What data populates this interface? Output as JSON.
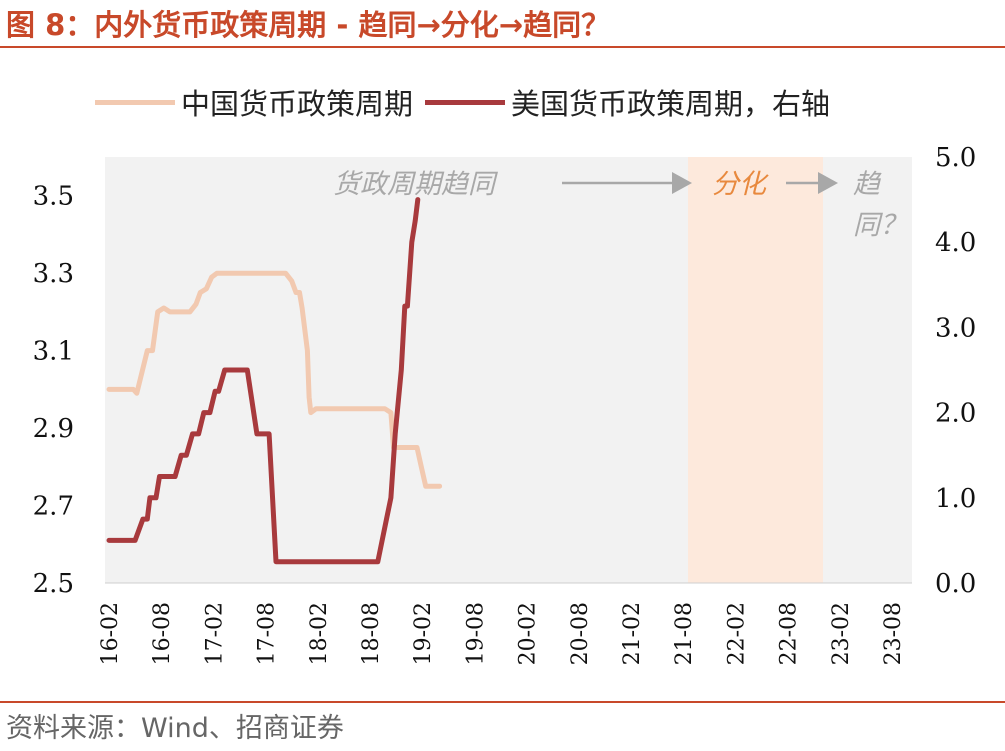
{
  "title": "图 8：内外货币政策周期 - 趋同→分化→趋同？",
  "source": "资料来源：Wind、招商证券",
  "colors": {
    "accent": "#c8492a",
    "china_series": "#f2c9b0",
    "us_series": "#a83a3d",
    "shade_gray": "#f2f2f2",
    "shade_orange": "#fde9dc",
    "annotation_gray": "#a8a8a8",
    "annotation_orange": "#e8893e"
  },
  "chart_data": {
    "type": "line",
    "legend_position": "top",
    "x_tick_labels": [
      "16-02",
      "16-08",
      "17-02",
      "17-08",
      "18-02",
      "18-08",
      "19-02",
      "19-08",
      "20-02",
      "20-08",
      "21-02",
      "21-08",
      "22-02",
      "22-08",
      "23-02",
      "23-08"
    ],
    "y_left": {
      "ticks": [
        "2.5",
        "2.7",
        "2.9",
        "3.1",
        "3.3",
        "3.5"
      ],
      "range": [
        2.5,
        3.6
      ]
    },
    "y_right": {
      "ticks": [
        "0.0",
        "1.0",
        "2.0",
        "3.0",
        "4.0",
        "5.0"
      ],
      "range": [
        0.0,
        5.0
      ]
    },
    "series": [
      {
        "name": "中国货币政策周期",
        "axis": "left",
        "points": [
          [
            0,
            3.0
          ],
          [
            2.8,
            3.0
          ],
          [
            3.2,
            2.99
          ],
          [
            4.4,
            3.1
          ],
          [
            5.0,
            3.1
          ],
          [
            5.6,
            3.2
          ],
          [
            6.3,
            3.21
          ],
          [
            7.0,
            3.2
          ],
          [
            8.0,
            3.2
          ],
          [
            9.0,
            3.2
          ],
          [
            9.3,
            3.2
          ],
          [
            10.0,
            3.22
          ],
          [
            10.5,
            3.25
          ],
          [
            11.2,
            3.26
          ],
          [
            11.8,
            3.29
          ],
          [
            12.4,
            3.3
          ],
          [
            14,
            3.3
          ],
          [
            16,
            3.3
          ],
          [
            18,
            3.3
          ],
          [
            19.7,
            3.3
          ],
          [
            20.3,
            3.3
          ],
          [
            21.0,
            3.28
          ],
          [
            21.5,
            3.25
          ],
          [
            21.9,
            3.25
          ],
          [
            22.2,
            3.21
          ],
          [
            22.8,
            3.1
          ],
          [
            23.0,
            2.98
          ],
          [
            23.2,
            2.94
          ],
          [
            23.8,
            2.95
          ],
          [
            25,
            2.95
          ],
          [
            27,
            2.95
          ],
          [
            29,
            2.95
          ],
          [
            31.0,
            2.95
          ],
          [
            31.7,
            2.95
          ],
          [
            32.4,
            2.94
          ],
          [
            32.7,
            2.85
          ],
          [
            33.1,
            2.85
          ],
          [
            34,
            2.85
          ],
          [
            35.4,
            2.85
          ],
          [
            35.9,
            2.8
          ],
          [
            36.4,
            2.75
          ],
          [
            37,
            2.75
          ],
          [
            38.0,
            2.75
          ]
        ]
      },
      {
        "name": "美国货币政策周期，右轴",
        "axis": "right",
        "points": [
          [
            0,
            0.5
          ],
          [
            3.0,
            0.5
          ],
          [
            3.9,
            0.75
          ],
          [
            4.4,
            0.75
          ],
          [
            4.7,
            1.0
          ],
          [
            5.4,
            1.0
          ],
          [
            5.8,
            1.25
          ],
          [
            7.6,
            1.25
          ],
          [
            8.3,
            1.5
          ],
          [
            8.9,
            1.5
          ],
          [
            9.6,
            1.75
          ],
          [
            10.3,
            1.75
          ],
          [
            10.9,
            2.0
          ],
          [
            11.6,
            2.0
          ],
          [
            12.2,
            2.25
          ],
          [
            12.6,
            2.25
          ],
          [
            13.3,
            2.5
          ],
          [
            15.3,
            2.5
          ],
          [
            15.9,
            2.5
          ],
          [
            17.0,
            1.75
          ],
          [
            18.4,
            1.75
          ],
          [
            19.2,
            0.25
          ],
          [
            22,
            0.25
          ],
          [
            25,
            0.25
          ],
          [
            28,
            0.25
          ],
          [
            30.9,
            0.25
          ],
          [
            31.9,
            0.75
          ],
          [
            32.4,
            1.0
          ],
          [
            32.9,
            1.75
          ],
          [
            33.6,
            2.5
          ],
          [
            34.0,
            3.25
          ],
          [
            34.3,
            3.25
          ],
          [
            34.8,
            4.0
          ],
          [
            35.2,
            4.25
          ],
          [
            35.5,
            4.5
          ]
        ]
      }
    ],
    "shaded_regions": [
      {
        "label": "货政周期趋同",
        "period": "16-02 to 21-11",
        "color": "gray"
      },
      {
        "label": "分化",
        "period": "21-11 to 23-03",
        "color": "orange"
      },
      {
        "label": "趋同？",
        "period": "23-03 onward",
        "color": "gray"
      }
    ],
    "annotations": [
      "货政周期趋同",
      "分化",
      "趋同？"
    ]
  }
}
